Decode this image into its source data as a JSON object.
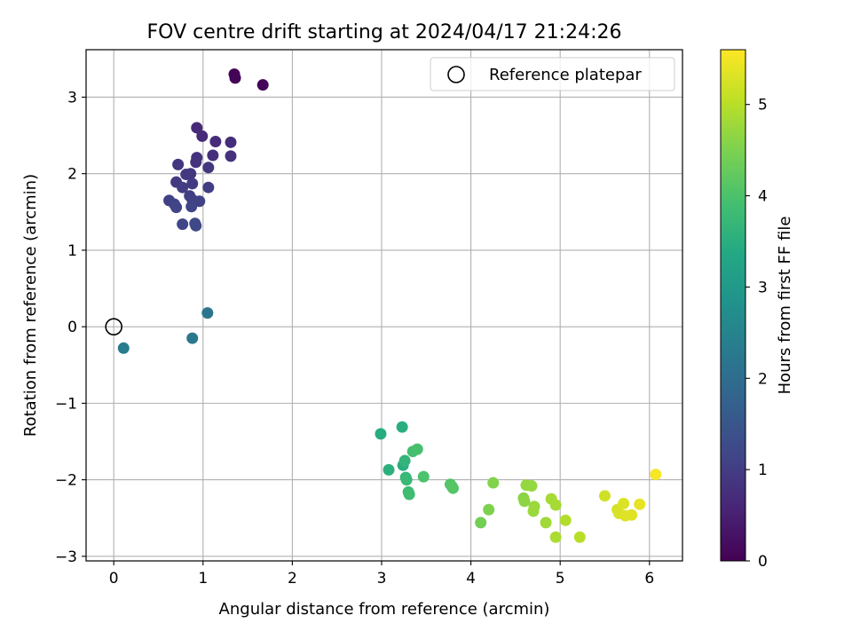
{
  "chart_data": {
    "type": "scatter",
    "title": "FOV centre drift starting at 2024/04/17 21:24:26",
    "xlabel": "Angular distance from reference (arcmin)",
    "ylabel": "Rotation from reference (arcmin)",
    "xlim": [
      -0.31,
      6.37
    ],
    "ylim": [
      -3.06,
      3.62
    ],
    "xticks": [
      0,
      1,
      2,
      3,
      4,
      5,
      6
    ],
    "yticks": [
      -3,
      -2,
      -1,
      0,
      1,
      2,
      3
    ],
    "xtick_labels": [
      "0",
      "1",
      "2",
      "3",
      "4",
      "5",
      "6"
    ],
    "ytick_labels": [
      "−3",
      "−2",
      "−1",
      "0",
      "1",
      "2",
      "3"
    ],
    "grid": true,
    "legend": {
      "position": "top-right",
      "entries": [
        "Reference platepar"
      ]
    },
    "reference_point": {
      "name": "Reference platepar",
      "x": 0,
      "y": 0
    },
    "colorbar": {
      "label": "Hours from first FF file",
      "min": 0,
      "max": 5.6,
      "ticks": [
        0,
        1,
        2,
        3,
        4,
        5
      ],
      "tick_labels": [
        "0",
        "1",
        "2",
        "3",
        "4",
        "5"
      ],
      "colormap": "viridis"
    },
    "points": [
      {
        "x": 1.35,
        "y": 3.3,
        "c": 0.02
      },
      {
        "x": 1.36,
        "y": 3.25,
        "c": 0.05
      },
      {
        "x": 1.67,
        "y": 3.16,
        "c": 0.08
      },
      {
        "x": 0.93,
        "y": 2.6,
        "c": 0.65
      },
      {
        "x": 0.99,
        "y": 2.49,
        "c": 0.68
      },
      {
        "x": 1.14,
        "y": 2.42,
        "c": 0.7
      },
      {
        "x": 1.31,
        "y": 2.41,
        "c": 0.72
      },
      {
        "x": 1.11,
        "y": 2.24,
        "c": 0.75
      },
      {
        "x": 1.31,
        "y": 2.23,
        "c": 0.78
      },
      {
        "x": 0.93,
        "y": 2.21,
        "c": 0.8
      },
      {
        "x": 0.92,
        "y": 2.15,
        "c": 0.83
      },
      {
        "x": 0.72,
        "y": 2.12,
        "c": 0.86
      },
      {
        "x": 1.06,
        "y": 2.08,
        "c": 0.88
      },
      {
        "x": 0.86,
        "y": 2.0,
        "c": 0.9
      },
      {
        "x": 0.81,
        "y": 1.99,
        "c": 0.92
      },
      {
        "x": 0.7,
        "y": 1.89,
        "c": 0.95
      },
      {
        "x": 0.88,
        "y": 1.87,
        "c": 0.97
      },
      {
        "x": 0.77,
        "y": 1.82,
        "c": 0.99
      },
      {
        "x": 1.06,
        "y": 1.82,
        "c": 1.01
      },
      {
        "x": 0.85,
        "y": 1.71,
        "c": 1.03
      },
      {
        "x": 0.88,
        "y": 1.66,
        "c": 1.05
      },
      {
        "x": 0.62,
        "y": 1.65,
        "c": 1.07
      },
      {
        "x": 0.96,
        "y": 1.64,
        "c": 1.09
      },
      {
        "x": 0.68,
        "y": 1.6,
        "c": 1.11
      },
      {
        "x": 0.7,
        "y": 1.56,
        "c": 1.13
      },
      {
        "x": 0.87,
        "y": 1.57,
        "c": 1.15
      },
      {
        "x": 0.77,
        "y": 1.34,
        "c": 1.18
      },
      {
        "x": 0.91,
        "y": 1.35,
        "c": 1.2
      },
      {
        "x": 0.92,
        "y": 1.32,
        "c": 1.22
      },
      {
        "x": 1.05,
        "y": 0.18,
        "c": 2.2
      },
      {
        "x": 0.88,
        "y": -0.15,
        "c": 2.25
      },
      {
        "x": 0.11,
        "y": -0.28,
        "c": 2.3
      },
      {
        "x": 2.99,
        "y": -1.4,
        "c": 3.45
      },
      {
        "x": 3.23,
        "y": -1.31,
        "c": 3.5
      },
      {
        "x": 3.08,
        "y": -1.87,
        "c": 3.55
      },
      {
        "x": 3.24,
        "y": -1.81,
        "c": 3.5
      },
      {
        "x": 3.26,
        "y": -1.75,
        "c": 3.65
      },
      {
        "x": 3.27,
        "y": -1.97,
        "c": 3.7
      },
      {
        "x": 3.28,
        "y": -2.0,
        "c": 3.75
      },
      {
        "x": 3.3,
        "y": -2.16,
        "c": 3.8
      },
      {
        "x": 3.31,
        "y": -2.19,
        "c": 3.85
      },
      {
        "x": 3.35,
        "y": -1.63,
        "c": 3.9
      },
      {
        "x": 3.4,
        "y": -1.6,
        "c": 3.95
      },
      {
        "x": 3.47,
        "y": -1.96,
        "c": 4.0
      },
      {
        "x": 3.77,
        "y": -2.06,
        "c": 4.05
      },
      {
        "x": 3.8,
        "y": -2.11,
        "c": 4.1
      },
      {
        "x": 3.79,
        "y": -2.09,
        "c": 4.1
      },
      {
        "x": 4.11,
        "y": -2.56,
        "c": 4.4
      },
      {
        "x": 4.2,
        "y": -2.39,
        "c": 4.5
      },
      {
        "x": 4.25,
        "y": -2.04,
        "c": 4.55
      },
      {
        "x": 4.59,
        "y": -2.24,
        "c": 4.6
      },
      {
        "x": 4.6,
        "y": -2.28,
        "c": 4.65
      },
      {
        "x": 4.62,
        "y": -2.07,
        "c": 4.7
      },
      {
        "x": 4.68,
        "y": -2.08,
        "c": 4.7
      },
      {
        "x": 4.7,
        "y": -2.41,
        "c": 4.75
      },
      {
        "x": 4.71,
        "y": -2.35,
        "c": 4.75
      },
      {
        "x": 4.84,
        "y": -2.56,
        "c": 4.8
      },
      {
        "x": 4.9,
        "y": -2.25,
        "c": 4.85
      },
      {
        "x": 4.95,
        "y": -2.33,
        "c": 4.85
      },
      {
        "x": 4.95,
        "y": -2.75,
        "c": 4.9
      },
      {
        "x": 5.06,
        "y": -2.53,
        "c": 4.95
      },
      {
        "x": 5.22,
        "y": -2.75,
        "c": 5.0
      },
      {
        "x": 5.5,
        "y": -2.21,
        "c": 5.2
      },
      {
        "x": 5.64,
        "y": -2.39,
        "c": 5.25
      },
      {
        "x": 5.66,
        "y": -2.44,
        "c": 5.28
      },
      {
        "x": 5.71,
        "y": -2.31,
        "c": 5.3
      },
      {
        "x": 5.73,
        "y": -2.47,
        "c": 5.32
      },
      {
        "x": 5.8,
        "y": -2.46,
        "c": 5.35
      },
      {
        "x": 5.89,
        "y": -2.32,
        "c": 5.4
      },
      {
        "x": 6.07,
        "y": -1.93,
        "c": 5.55
      }
    ]
  }
}
